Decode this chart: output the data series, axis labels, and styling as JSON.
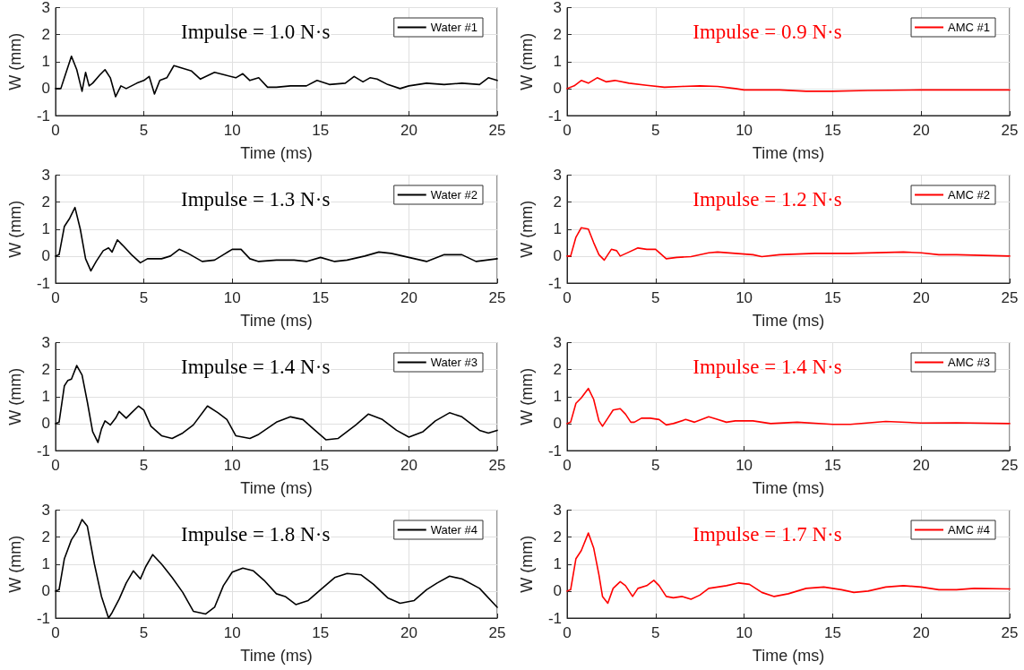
{
  "chart_data": [
    {
      "type": "line",
      "xlabel": "Time (ms)",
      "ylabel": "W (mm)",
      "annotations": [
        "Impulse = 1.0 N·s"
      ],
      "xlim": [
        0,
        25
      ],
      "xticks": [
        0,
        5,
        10,
        15,
        20,
        25
      ],
      "ylim": [
        -1,
        3
      ],
      "yticks": [
        -1,
        0,
        1,
        2,
        3
      ],
      "grid": true,
      "legend": "top right",
      "line_style": "solid",
      "series": [
        {
          "name": "Water #1",
          "color": "#000000",
          "x": [
            0,
            0.3,
            0.5,
            0.9,
            1.2,
            1.5,
            1.7,
            1.9,
            2.1,
            2.5,
            2.8,
            3.1,
            3.4,
            3.7,
            4.0,
            4.3,
            4.6,
            5.0,
            5.3,
            5.6,
            5.9,
            6.3,
            6.7,
            7.2,
            7.7,
            8.2,
            9.0,
            9.6,
            10.2,
            10.6,
            11.0,
            11.5,
            12.0,
            12.5,
            13.3,
            14.2,
            14.8,
            15.5,
            16.4,
            16.9,
            17.4,
            17.8,
            18.2,
            18.8,
            19.5,
            20.0,
            21.0,
            22.0,
            23.0,
            24.0,
            24.5,
            25
          ],
          "values": [
            0,
            0,
            0.4,
            1.2,
            0.7,
            -0.1,
            0.6,
            0.1,
            0.2,
            0.5,
            0.7,
            0.4,
            -0.3,
            0.1,
            0.0,
            0.1,
            0.2,
            0.3,
            0.45,
            -0.2,
            0.3,
            0.4,
            0.85,
            0.75,
            0.65,
            0.35,
            0.6,
            0.5,
            0.4,
            0.55,
            0.3,
            0.4,
            0.05,
            0.05,
            0.1,
            0.1,
            0.3,
            0.15,
            0.2,
            0.45,
            0.25,
            0.4,
            0.35,
            0.15,
            0.0,
            0.1,
            0.2,
            0.15,
            0.2,
            0.15,
            0.4,
            0.3
          ]
        }
      ]
    },
    {
      "type": "line",
      "xlabel": "Time (ms)",
      "ylabel": "W (mm)",
      "annotations": [
        "Impulse = 0.9 N·s"
      ],
      "xlim": [
        0,
        25
      ],
      "xticks": [
        0,
        5,
        10,
        15,
        20,
        25
      ],
      "ylim": [
        -1,
        3
      ],
      "yticks": [
        -1,
        0,
        1,
        2,
        3
      ],
      "grid": true,
      "legend": "top right",
      "line_style": "solid",
      "series": [
        {
          "name": "AMC #1",
          "color": "#ff0000",
          "x": [
            0,
            0.4,
            0.8,
            1.2,
            1.7,
            2.2,
            2.7,
            3.5,
            4.5,
            5.5,
            6.5,
            7.5,
            8.5,
            9.5,
            10,
            12,
            13.5,
            15,
            17,
            20,
            22,
            25
          ],
          "values": [
            0,
            0.1,
            0.3,
            0.2,
            0.4,
            0.25,
            0.3,
            0.2,
            0.12,
            0.05,
            0.08,
            0.1,
            0.08,
            0,
            -0.05,
            -0.05,
            -0.1,
            -0.1,
            -0.07,
            -0.05,
            -0.05,
            -0.05
          ]
        }
      ]
    },
    {
      "type": "line",
      "xlabel": "Time (ms)",
      "ylabel": "W (mm)",
      "annotations": [
        "Impulse = 1.3 N·s"
      ],
      "xlim": [
        0,
        25
      ],
      "xticks": [
        0,
        5,
        10,
        15,
        20,
        25
      ],
      "ylim": [
        -1,
        3
      ],
      "yticks": [
        -1,
        0,
        1,
        2,
        3
      ],
      "grid": true,
      "legend": "top right",
      "line_style": "solid",
      "series": [
        {
          "name": "Water #2",
          "color": "#000000",
          "x": [
            0,
            0.2,
            0.5,
            0.8,
            1.1,
            1.4,
            1.7,
            2.0,
            2.3,
            2.7,
            3.0,
            3.2,
            3.5,
            3.8,
            4.3,
            4.8,
            5.2,
            6.0,
            6.5,
            7.0,
            7.5,
            8.3,
            9.0,
            9.5,
            10.0,
            10.5,
            11.0,
            11.5,
            12.5,
            13.5,
            14.2,
            15.0,
            15.8,
            16.5,
            17.5,
            18.3,
            19.0,
            20.0,
            21.0,
            22.0,
            23.0,
            23.8,
            25
          ],
          "values": [
            0,
            0.05,
            1.1,
            1.4,
            1.8,
            1.0,
            -0.1,
            -0.55,
            -0.2,
            0.2,
            0.3,
            0.15,
            0.6,
            0.4,
            0.05,
            -0.25,
            -0.1,
            -0.1,
            0,
            0.25,
            0.1,
            -0.2,
            -0.15,
            0.05,
            0.25,
            0.25,
            -0.1,
            -0.2,
            -0.15,
            -0.15,
            -0.2,
            -0.05,
            -0.2,
            -0.15,
            0,
            0.15,
            0.1,
            -0.05,
            -0.2,
            0.05,
            0.05,
            -0.2,
            -0.1
          ]
        }
      ]
    },
    {
      "type": "line",
      "xlabel": "Time (ms)",
      "ylabel": "W (mm)",
      "annotations": [
        "Impulse = 1.2 N·s"
      ],
      "xlim": [
        0,
        25
      ],
      "xticks": [
        0,
        5,
        10,
        15,
        20,
        25
      ],
      "ylim": [
        -1,
        3
      ],
      "yticks": [
        -1,
        0,
        1,
        2,
        3
      ],
      "grid": true,
      "legend": "top right",
      "line_style": "solid",
      "series": [
        {
          "name": "AMC #2",
          "color": "#ff0000",
          "x": [
            0,
            0.2,
            0.5,
            0.8,
            1.2,
            1.5,
            1.8,
            2.1,
            2.5,
            2.8,
            3.0,
            3.5,
            4.0,
            4.5,
            5.0,
            5.6,
            6.2,
            7.0,
            8.0,
            8.5,
            9.5,
            10.5,
            11.0,
            12.0,
            14.0,
            16.0,
            19.0,
            20.0,
            21.0,
            22.0,
            25
          ],
          "values": [
            0,
            0,
            0.7,
            1.05,
            1.0,
            0.5,
            0.05,
            -0.15,
            0.25,
            0.2,
            0.0,
            0.15,
            0.3,
            0.25,
            0.25,
            -0.1,
            -0.05,
            -0.02,
            0.12,
            0.15,
            0.1,
            0.05,
            -0.02,
            0.05,
            0.1,
            0.1,
            0.15,
            0.12,
            0.05,
            0.05,
            0.0
          ]
        }
      ]
    },
    {
      "type": "line",
      "xlabel": "Time (ms)",
      "ylabel": "W (mm)",
      "annotations": [
        "Impulse = 1.4 N·s"
      ],
      "xlim": [
        0,
        25
      ],
      "xticks": [
        0,
        5,
        10,
        15,
        20,
        25
      ],
      "ylim": [
        -1,
        3
      ],
      "yticks": [
        -1,
        0,
        1,
        2,
        3
      ],
      "grid": true,
      "legend": "top right",
      "line_style": "solid",
      "series": [
        {
          "name": "Water #3",
          "color": "#000000",
          "x": [
            0,
            0.2,
            0.5,
            0.7,
            0.9,
            1.2,
            1.5,
            1.8,
            2.1,
            2.4,
            2.6,
            2.8,
            3.1,
            3.4,
            3.6,
            4.0,
            4.3,
            4.7,
            5.0,
            5.4,
            6.0,
            6.6,
            7.2,
            7.8,
            8.6,
            9.2,
            9.7,
            10.2,
            11.0,
            11.5,
            12.5,
            13.3,
            14.0,
            14.6,
            15.3,
            16.0,
            17.0,
            17.7,
            18.5,
            19.3,
            20.0,
            20.8,
            21.5,
            22.3,
            23.0,
            24.0,
            24.5,
            25
          ],
          "values": [
            0,
            0.05,
            1.4,
            1.6,
            1.65,
            2.15,
            1.8,
            0.8,
            -0.3,
            -0.7,
            -0.2,
            0.1,
            -0.05,
            0.2,
            0.45,
            0.2,
            0.4,
            0.65,
            0.5,
            -0.1,
            -0.45,
            -0.55,
            -0.35,
            -0.05,
            0.65,
            0.4,
            0.15,
            -0.45,
            -0.55,
            -0.4,
            0.05,
            0.25,
            0.15,
            -0.2,
            -0.6,
            -0.55,
            -0.05,
            0.35,
            0.15,
            -0.25,
            -0.5,
            -0.3,
            0.1,
            0.4,
            0.25,
            -0.25,
            -0.35,
            -0.25
          ]
        }
      ]
    },
    {
      "type": "line",
      "xlabel": "Time (ms)",
      "ylabel": "W (mm)",
      "annotations": [
        "Impulse = 1.4 N·s"
      ],
      "xlim": [
        0,
        25
      ],
      "xticks": [
        0,
        5,
        10,
        15,
        20,
        25
      ],
      "ylim": [
        -1,
        3
      ],
      "yticks": [
        -1,
        0,
        1,
        2,
        3
      ],
      "grid": true,
      "legend": "top right",
      "line_style": "solid",
      "series": [
        {
          "name": "AMC #3",
          "color": "#ff0000",
          "x": [
            0,
            0.2,
            0.5,
            0.8,
            1.2,
            1.5,
            1.8,
            2.0,
            2.3,
            2.6,
            3.0,
            3.3,
            3.6,
            3.8,
            4.2,
            4.7,
            5.2,
            5.6,
            6.0,
            6.7,
            7.2,
            8.0,
            8.5,
            9.0,
            9.5,
            10.5,
            11.5,
            13.0,
            15.0,
            16.0,
            18.0,
            20.0,
            22.0,
            25
          ],
          "values": [
            0,
            0.05,
            0.75,
            0.95,
            1.3,
            0.9,
            0.1,
            -0.1,
            0.2,
            0.5,
            0.55,
            0.35,
            0.05,
            0.05,
            0.2,
            0.2,
            0.15,
            -0.05,
            0,
            0.15,
            0.05,
            0.25,
            0.15,
            0.05,
            0.1,
            0.1,
            0,
            0.05,
            -0.03,
            -0.03,
            0.08,
            0.02,
            0.03,
            0.0
          ]
        }
      ]
    },
    {
      "type": "line",
      "xlabel": "Time (ms)",
      "ylabel": "W (mm)",
      "annotations": [
        "Impulse = 1.8 N·s"
      ],
      "xlim": [
        0,
        25
      ],
      "xticks": [
        0,
        5,
        10,
        15,
        20,
        25
      ],
      "ylim": [
        -1,
        3
      ],
      "yticks": [
        -1,
        0,
        1,
        2,
        3
      ],
      "grid": true,
      "legend": "top right",
      "line_style": "solid",
      "series": [
        {
          "name": "Water #4",
          "color": "#000000",
          "x": [
            0,
            0.2,
            0.5,
            0.9,
            1.2,
            1.5,
            1.8,
            2.2,
            2.6,
            3.0,
            3.2,
            3.6,
            4.0,
            4.4,
            4.8,
            5.1,
            5.5,
            6.0,
            6.6,
            7.2,
            7.8,
            8.5,
            9.0,
            9.5,
            10.0,
            10.6,
            11.2,
            11.8,
            12.5,
            13.0,
            13.6,
            14.3,
            15.0,
            15.8,
            16.5,
            17.3,
            18.0,
            18.8,
            19.5,
            20.3,
            21.0,
            21.6,
            22.3,
            23.0,
            24.0,
            25
          ],
          "values": [
            0,
            0.05,
            1.2,
            1.9,
            2.2,
            2.65,
            2.4,
            1.0,
            -0.2,
            -1.0,
            -0.8,
            -0.3,
            0.3,
            0.75,
            0.45,
            0.9,
            1.35,
            1.0,
            0.5,
            -0.05,
            -0.75,
            -0.85,
            -0.6,
            0.2,
            0.7,
            0.85,
            0.75,
            0.4,
            -0.1,
            -0.2,
            -0.5,
            -0.35,
            0.05,
            0.5,
            0.65,
            0.6,
            0.25,
            -0.25,
            -0.45,
            -0.35,
            0.05,
            0.3,
            0.55,
            0.45,
            0.1,
            -0.6
          ]
        }
      ]
    },
    {
      "type": "line",
      "xlabel": "Time (ms)",
      "ylabel": "W (mm)",
      "annotations": [
        "Impulse = 1.7 N·s"
      ],
      "xlim": [
        0,
        25
      ],
      "xticks": [
        0,
        5,
        10,
        15,
        20,
        25
      ],
      "ylim": [
        -1,
        3
      ],
      "yticks": [
        -1,
        0,
        1,
        2,
        3
      ],
      "grid": true,
      "legend": "top right",
      "line_style": "solid",
      "series": [
        {
          "name": "AMC #4",
          "color": "#ff0000",
          "x": [
            0,
            0.2,
            0.5,
            0.8,
            1.2,
            1.5,
            1.8,
            2.0,
            2.3,
            2.6,
            3.0,
            3.3,
            3.7,
            4.0,
            4.5,
            4.9,
            5.2,
            5.6,
            6.0,
            6.5,
            7.0,
            7.5,
            8.0,
            9.0,
            9.7,
            10.3,
            11.0,
            11.7,
            12.5,
            13.5,
            14.5,
            15.5,
            16.2,
            17.0,
            18.0,
            19.0,
            20.0,
            21.0,
            22.0,
            23.0,
            25
          ],
          "values": [
            0,
            0.05,
            1.2,
            1.5,
            2.15,
            1.6,
            0.6,
            -0.2,
            -0.45,
            0.1,
            0.35,
            0.2,
            -0.2,
            0.1,
            0.2,
            0.4,
            0.2,
            -0.2,
            -0.25,
            -0.2,
            -0.3,
            -0.15,
            0.1,
            0.2,
            0.3,
            0.25,
            -0.05,
            -0.2,
            -0.1,
            0.1,
            0.15,
            0.05,
            -0.05,
            0.0,
            0.15,
            0.2,
            0.15,
            0.05,
            0.05,
            0.1,
            0.08
          ]
        }
      ]
    }
  ]
}
